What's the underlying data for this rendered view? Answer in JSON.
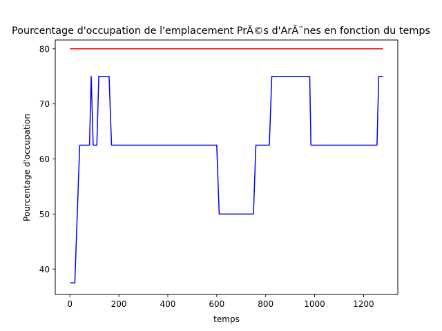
{
  "chart_data": {
    "type": "line",
    "title": "Pourcentage d'occupation de l'emplacement PrÃ©s d'ArÃ¨nes en fonction du temps",
    "xlabel": "temps",
    "ylabel": "Pourcentage d'occupation",
    "xlim": [
      -60,
      1340
    ],
    "ylim": [
      35.4,
      81.6
    ],
    "xticks": [
      0,
      200,
      400,
      600,
      800,
      1000,
      1200
    ],
    "yticks": [
      40,
      50,
      60,
      70,
      80
    ],
    "grid": false,
    "series": [
      {
        "color": "#0000ff",
        "x": [
          0,
          20,
          40,
          80,
          87,
          95,
          110,
          118,
          125,
          160,
          170,
          600,
          610,
          750,
          760,
          800,
          815,
          825,
          980,
          985,
          1255,
          1262,
          1280
        ],
        "y": [
          37.5,
          37.5,
          62.5,
          62.5,
          75,
          62.5,
          62.5,
          75,
          75,
          75,
          62.5,
          62.5,
          50,
          50,
          62.5,
          62.5,
          62.5,
          75,
          75,
          62.5,
          62.5,
          75,
          75
        ]
      },
      {
        "color": "#ff0000",
        "x": [
          0,
          1280
        ],
        "y": [
          80,
          80
        ]
      }
    ]
  }
}
